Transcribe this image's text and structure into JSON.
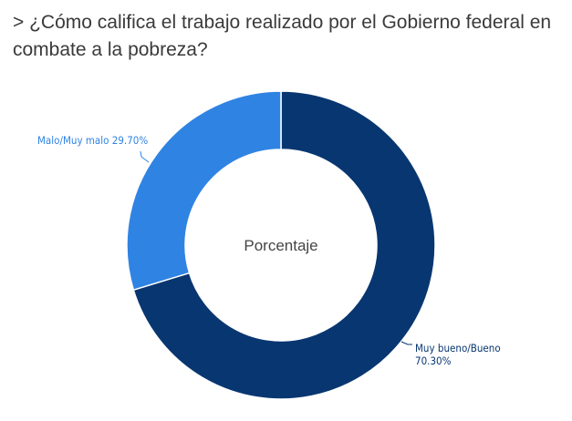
{
  "chart_data": {
    "type": "pie",
    "subtype": "donut",
    "title": "> ¿Cómo califica el trabajo realizado por el Gobierno federal en combate a la pobreza?",
    "center_label": "Porcentaje",
    "slices": [
      {
        "label": "Muy bueno/Bueno",
        "value": 70.3,
        "display": "70.30%",
        "color": "#083671"
      },
      {
        "label": "Malo/Muy malo",
        "value": 29.7,
        "display": "29.70%",
        "color": "#2f83e3"
      }
    ]
  }
}
